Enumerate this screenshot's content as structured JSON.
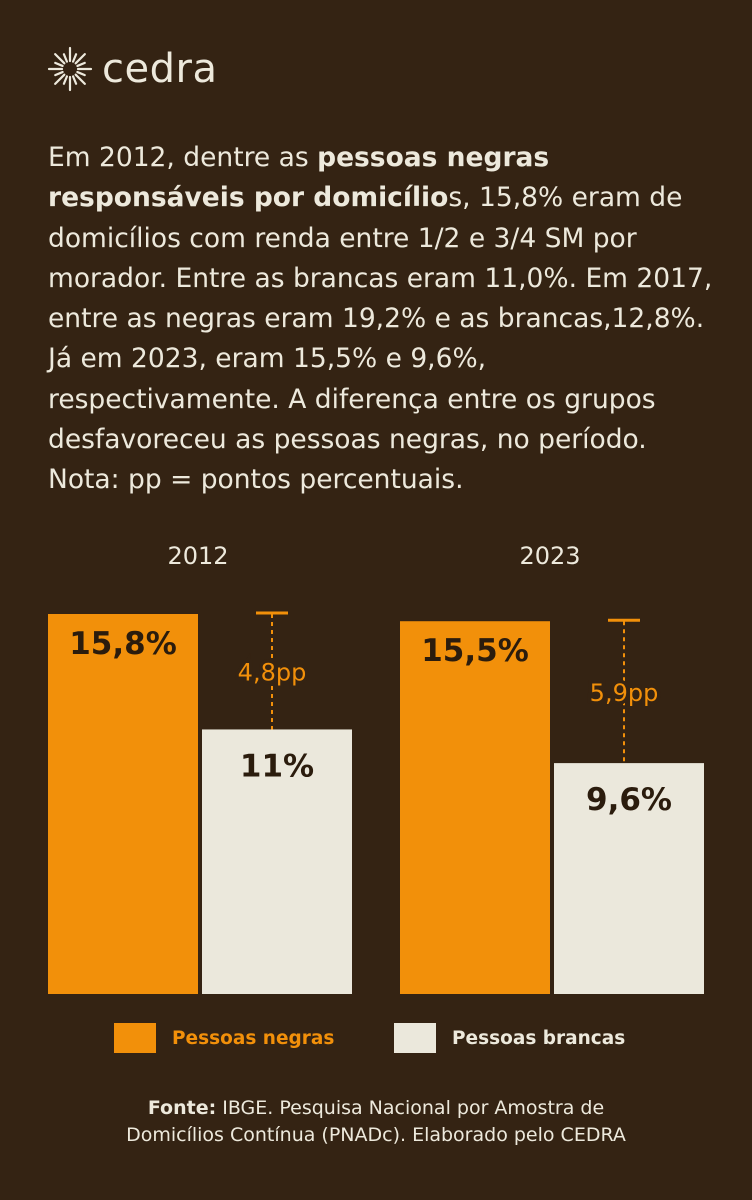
{
  "brand": {
    "name": "cedra"
  },
  "intro": {
    "pre": "Em 2012, dentre as ",
    "bold": "pessoas negras responsáveis por domicílio",
    "post": "s, 15,8% eram de domicílios com renda entre 1/2 e 3/4 SM por morador. Entre as brancas eram 11,0%. Em 2017, entre as negras eram 19,2% e as brancas,12,8%. Já em 2023, eram 15,5% e 9,6%, respectivamente. A diferença entre os grupos desfavoreceu as pessoas negras, no período. Nota: pp = pontos percentuais."
  },
  "colors": {
    "background": "#342313",
    "negras": "#f2900a",
    "brancas": "#ebe8dc",
    "dark_text": "#2b1c0d",
    "gap_text": "#f2900a"
  },
  "chart_data": {
    "type": "bar",
    "categories": [
      "2012",
      "2023"
    ],
    "series": [
      {
        "name": "Pessoas negras",
        "values": [
          15.8,
          15.5
        ],
        "labels": [
          "15,8%",
          "15,5%"
        ]
      },
      {
        "name": "Pessoas brancas",
        "values": [
          11.0,
          9.6
        ],
        "labels": [
          "11%",
          "9,6%"
        ]
      }
    ],
    "gaps": [
      {
        "category": "2012",
        "value": 4.8,
        "label": "4,8pp"
      },
      {
        "category": "2023",
        "value": 5.9,
        "label": "5,9pp"
      }
    ],
    "title": "",
    "xlabel": "",
    "ylabel": "",
    "ylim": [
      0,
      15.8
    ],
    "legend_position": "bottom"
  },
  "legend": {
    "negras": "Pessoas negras",
    "brancas": "Pessoas brancas"
  },
  "source": {
    "label": "Fonte:",
    "line1_rest": " IBGE. Pesquisa Nacional por Amostra de",
    "line2": "Domicílios Contínua (PNADc). Elaborado pelo CEDRA"
  }
}
